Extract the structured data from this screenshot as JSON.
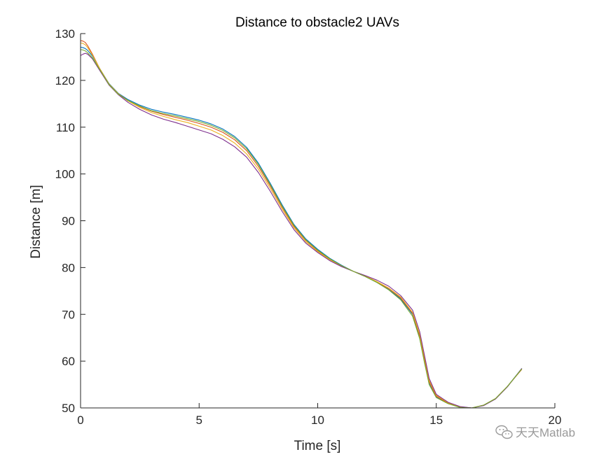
{
  "chart_data": {
    "type": "line",
    "title": "Distance to obstacle2 UAVs",
    "xlabel": "Time [s]",
    "ylabel": "Distance [m]",
    "xlim": [
      0,
      20
    ],
    "ylim": [
      50,
      130
    ],
    "xticks": [
      0,
      5,
      10,
      15,
      20
    ],
    "yticks": [
      50,
      60,
      70,
      80,
      90,
      100,
      110,
      120,
      130
    ],
    "grid": false,
    "legend": "none",
    "box": "off",
    "series": [
      {
        "color": "#0072BD",
        "points": [
          [
            0,
            127.1
          ],
          [
            0.1,
            127.0
          ],
          [
            0.2,
            126.8
          ],
          [
            0.3,
            126.4
          ],
          [
            0.5,
            125.2
          ],
          [
            0.8,
            122.6
          ],
          [
            1.2,
            119.3
          ],
          [
            1.6,
            117.2
          ],
          [
            2.0,
            115.9
          ],
          [
            2.5,
            114.7
          ],
          [
            3.0,
            113.8
          ],
          [
            3.5,
            113.2
          ],
          [
            4.0,
            112.7
          ],
          [
            4.5,
            112.1
          ],
          [
            5.0,
            111.5
          ],
          [
            5.5,
            110.7
          ],
          [
            6.0,
            109.6
          ],
          [
            6.5,
            108.0
          ],
          [
            7.0,
            105.7
          ],
          [
            7.5,
            102.3
          ],
          [
            8.0,
            98.0
          ],
          [
            8.5,
            93.4
          ],
          [
            9.0,
            89.2
          ],
          [
            9.5,
            86.1
          ],
          [
            10.0,
            83.9
          ],
          [
            10.5,
            82.0
          ],
          [
            11.0,
            80.5
          ],
          [
            11.5,
            79.2
          ],
          [
            12.0,
            78.1
          ],
          [
            12.5,
            76.8
          ],
          [
            13.0,
            75.3
          ],
          [
            13.5,
            73.3
          ],
          [
            14.0,
            70.0
          ],
          [
            14.3,
            65.0
          ],
          [
            14.5,
            60.0
          ],
          [
            14.7,
            55.2
          ],
          [
            15.0,
            52.3
          ],
          [
            15.5,
            51.0
          ],
          [
            16.0,
            50.2
          ],
          [
            16.5,
            50.0
          ],
          [
            17.0,
            50.6
          ],
          [
            17.5,
            52.0
          ],
          [
            18.0,
            54.6
          ],
          [
            18.6,
            58.4
          ]
        ]
      },
      {
        "color": "#D95319",
        "points": [
          [
            0,
            128.5
          ],
          [
            0.1,
            128.4
          ],
          [
            0.2,
            128.1
          ],
          [
            0.3,
            127.4
          ],
          [
            0.5,
            125.6
          ],
          [
            0.8,
            122.6
          ],
          [
            1.2,
            119.2
          ],
          [
            1.6,
            117.1
          ],
          [
            2.0,
            115.7
          ],
          [
            2.5,
            114.4
          ],
          [
            3.0,
            113.4
          ],
          [
            3.5,
            112.7
          ],
          [
            4.0,
            112.1
          ],
          [
            4.5,
            111.5
          ],
          [
            5.0,
            110.8
          ],
          [
            5.5,
            110.0
          ],
          [
            6.0,
            108.9
          ],
          [
            6.5,
            107.3
          ],
          [
            7.0,
            105.0
          ],
          [
            7.5,
            101.6
          ],
          [
            8.0,
            97.4
          ],
          [
            8.5,
            92.9
          ],
          [
            9.0,
            88.8
          ],
          [
            9.5,
            85.8
          ],
          [
            10.0,
            83.6
          ],
          [
            10.5,
            81.8
          ],
          [
            11.0,
            80.4
          ],
          [
            11.5,
            79.2
          ],
          [
            12.0,
            78.1
          ],
          [
            12.5,
            76.9
          ],
          [
            13.0,
            75.5
          ],
          [
            13.5,
            73.5
          ],
          [
            14.0,
            70.2
          ],
          [
            14.3,
            65.4
          ],
          [
            14.5,
            60.4
          ],
          [
            14.7,
            55.6
          ],
          [
            15.0,
            52.5
          ],
          [
            15.5,
            51.0
          ],
          [
            16.0,
            50.2
          ],
          [
            16.5,
            50.0
          ],
          [
            17.0,
            50.6
          ],
          [
            17.5,
            52.0
          ],
          [
            18.0,
            54.6
          ],
          [
            18.6,
            58.2
          ]
        ]
      },
      {
        "color": "#EDB120",
        "points": [
          [
            0,
            128.0
          ],
          [
            0.1,
            127.9
          ],
          [
            0.2,
            127.6
          ],
          [
            0.3,
            127.0
          ],
          [
            0.5,
            125.4
          ],
          [
            0.8,
            122.6
          ],
          [
            1.2,
            119.2
          ],
          [
            1.6,
            117.1
          ],
          [
            2.0,
            115.6
          ],
          [
            2.5,
            114.2
          ],
          [
            3.0,
            113.1
          ],
          [
            3.5,
            112.3
          ],
          [
            4.0,
            111.6
          ],
          [
            4.5,
            111.0
          ],
          [
            5.0,
            110.2
          ],
          [
            5.5,
            109.4
          ],
          [
            6.0,
            108.2
          ],
          [
            6.5,
            106.6
          ],
          [
            7.0,
            104.3
          ],
          [
            7.5,
            101.0
          ],
          [
            8.0,
            96.9
          ],
          [
            8.5,
            92.5
          ],
          [
            9.0,
            88.5
          ],
          [
            9.5,
            85.5
          ],
          [
            10.0,
            83.4
          ],
          [
            10.5,
            81.7
          ],
          [
            11.0,
            80.3
          ],
          [
            11.5,
            79.2
          ],
          [
            12.0,
            78.2
          ],
          [
            12.5,
            77.0
          ],
          [
            13.0,
            75.6
          ],
          [
            13.5,
            73.7
          ],
          [
            14.0,
            70.4
          ],
          [
            14.3,
            65.7
          ],
          [
            14.5,
            60.8
          ],
          [
            14.7,
            55.9
          ],
          [
            15.0,
            52.7
          ],
          [
            15.5,
            51.1
          ],
          [
            16.0,
            50.2
          ],
          [
            16.5,
            50.0
          ],
          [
            17.0,
            50.6
          ],
          [
            17.5,
            52.0
          ],
          [
            18.0,
            54.6
          ],
          [
            18.6,
            58.3
          ]
        ]
      },
      {
        "color": "#7E2F8E",
        "points": [
          [
            0,
            125.3
          ],
          [
            0.1,
            125.6
          ],
          [
            0.2,
            125.8
          ],
          [
            0.3,
            125.6
          ],
          [
            0.5,
            124.6
          ],
          [
            0.8,
            122.2
          ],
          [
            1.2,
            119.0
          ],
          [
            1.6,
            116.9
          ],
          [
            2.0,
            115.3
          ],
          [
            2.5,
            113.8
          ],
          [
            3.0,
            112.6
          ],
          [
            3.5,
            111.7
          ],
          [
            4.0,
            111.0
          ],
          [
            4.5,
            110.2
          ],
          [
            5.0,
            109.4
          ],
          [
            5.5,
            108.6
          ],
          [
            6.0,
            107.4
          ],
          [
            6.5,
            105.8
          ],
          [
            7.0,
            103.6
          ],
          [
            7.5,
            100.3
          ],
          [
            8.0,
            96.3
          ],
          [
            8.5,
            92.0
          ],
          [
            9.0,
            88.1
          ],
          [
            9.5,
            85.2
          ],
          [
            10.0,
            83.2
          ],
          [
            10.5,
            81.5
          ],
          [
            11.0,
            80.2
          ],
          [
            11.5,
            79.2
          ],
          [
            12.0,
            78.3
          ],
          [
            12.5,
            77.3
          ],
          [
            13.0,
            76.0
          ],
          [
            13.5,
            74.0
          ],
          [
            14.0,
            70.9
          ],
          [
            14.3,
            66.3
          ],
          [
            14.5,
            61.3
          ],
          [
            14.7,
            56.3
          ],
          [
            15.0,
            52.9
          ],
          [
            15.5,
            51.2
          ],
          [
            16.0,
            50.3
          ],
          [
            16.5,
            50.0
          ],
          [
            17.0,
            50.5
          ],
          [
            17.5,
            51.9
          ],
          [
            18.0,
            54.5
          ],
          [
            18.6,
            58.4
          ]
        ]
      },
      {
        "color": "#77AC30",
        "points": [
          [
            0,
            126.6
          ],
          [
            0.1,
            126.5
          ],
          [
            0.2,
            126.3
          ],
          [
            0.3,
            125.9
          ],
          [
            0.5,
            124.8
          ],
          [
            0.8,
            122.4
          ],
          [
            1.2,
            119.1
          ],
          [
            1.6,
            117.0
          ],
          [
            2.0,
            115.7
          ],
          [
            2.5,
            114.5
          ],
          [
            3.0,
            113.5
          ],
          [
            3.5,
            112.9
          ],
          [
            4.0,
            112.4
          ],
          [
            4.5,
            111.8
          ],
          [
            5.0,
            111.2
          ],
          [
            5.5,
            110.4
          ],
          [
            6.0,
            109.3
          ],
          [
            6.5,
            107.7
          ],
          [
            7.0,
            105.4
          ],
          [
            7.5,
            102.0
          ],
          [
            8.0,
            97.7
          ],
          [
            8.5,
            93.1
          ],
          [
            9.0,
            89.0
          ],
          [
            9.5,
            85.9
          ],
          [
            10.0,
            83.7
          ],
          [
            10.5,
            81.9
          ],
          [
            11.0,
            80.4
          ],
          [
            11.5,
            79.2
          ],
          [
            12.0,
            78.1
          ],
          [
            12.5,
            76.8
          ],
          [
            13.0,
            75.2
          ],
          [
            13.5,
            73.1
          ],
          [
            14.0,
            69.6
          ],
          [
            14.3,
            64.8
          ],
          [
            14.5,
            59.7
          ],
          [
            14.7,
            55.0
          ],
          [
            15.0,
            52.2
          ],
          [
            15.5,
            50.9
          ],
          [
            16.0,
            50.1
          ],
          [
            16.5,
            50.0
          ],
          [
            17.0,
            50.6
          ],
          [
            17.5,
            52.0
          ],
          [
            18.0,
            54.6
          ],
          [
            18.6,
            58.3
          ]
        ]
      }
    ]
  },
  "watermark": {
    "icon": "wechat-icon",
    "text": "天天Matlab"
  }
}
